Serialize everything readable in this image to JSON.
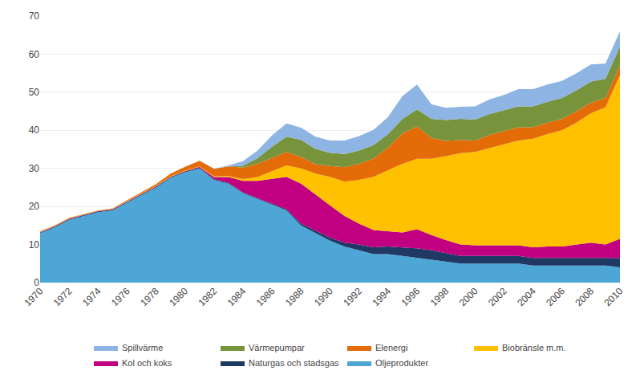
{
  "chart_data": {
    "type": "area",
    "stacked": true,
    "grid": true,
    "legend": "bottom",
    "x": [
      1970,
      1971,
      1972,
      1973,
      1974,
      1975,
      1976,
      1977,
      1978,
      1979,
      1980,
      1981,
      1982,
      1983,
      1984,
      1985,
      1986,
      1987,
      1988,
      1989,
      1990,
      1991,
      1992,
      1993,
      1994,
      1995,
      1996,
      1997,
      1998,
      1999,
      2000,
      2001,
      2002,
      2003,
      2004,
      2005,
      2006,
      2007,
      2008,
      2009,
      2010
    ],
    "xlim": [
      1970,
      2010
    ],
    "xticks": [
      1970,
      1972,
      1974,
      1976,
      1978,
      1980,
      1982,
      1984,
      1986,
      1988,
      1990,
      1992,
      1994,
      1996,
      1998,
      2000,
      2002,
      2004,
      2006,
      2008,
      2010
    ],
    "ylim": [
      0,
      70
    ],
    "yticks": [
      0,
      10,
      20,
      30,
      40,
      50,
      60,
      70
    ],
    "series": [
      {
        "name": "Oljeprodukter",
        "color": "#4da6d6",
        "values": [
          13.0,
          14.5,
          16.5,
          17.5,
          18.5,
          19.0,
          21.0,
          23.0,
          25.0,
          27.5,
          29.0,
          30.0,
          27.0,
          26.0,
          23.5,
          22.0,
          20.5,
          19.0,
          15.0,
          13.0,
          11.0,
          9.5,
          8.5,
          7.5,
          7.5,
          7.0,
          6.5,
          6.0,
          5.5,
          5.0,
          5.0,
          5.0,
          5.0,
          5.0,
          4.5,
          4.5,
          4.5,
          4.5,
          4.5,
          4.5,
          4.0
        ]
      },
      {
        "name": "Naturgas och stadsgas",
        "color": "#1f3864",
        "values": [
          0.2,
          0.2,
          0.2,
          0.2,
          0.2,
          0.2,
          0.2,
          0.2,
          0.2,
          0.2,
          0.2,
          0.2,
          0.2,
          0.2,
          0.2,
          0.2,
          0.2,
          0.3,
          0.5,
          0.6,
          0.8,
          1.0,
          1.5,
          1.8,
          2.0,
          2.2,
          2.5,
          2.5,
          2.2,
          2.0,
          2.0,
          2.0,
          2.0,
          2.0,
          2.0,
          2.0,
          2.0,
          2.0,
          2.0,
          2.0,
          2.5
        ]
      },
      {
        "name": "Kol och koks",
        "color": "#c00080",
        "values": [
          0.1,
          0.1,
          0.1,
          0.1,
          0.1,
          0.1,
          0.1,
          0.1,
          0.1,
          0.1,
          0.1,
          0.2,
          0.5,
          1.5,
          3.0,
          4.5,
          6.5,
          8.5,
          10.5,
          9.5,
          8.5,
          7.0,
          5.5,
          4.5,
          4.0,
          4.0,
          5.0,
          4.0,
          3.5,
          3.0,
          2.8,
          2.8,
          2.8,
          2.8,
          2.8,
          3.0,
          3.0,
          3.5,
          4.0,
          3.5,
          5.0
        ]
      },
      {
        "name": "Biobränsle m.m.",
        "color": "#ffc000",
        "values": [
          0.1,
          0.1,
          0.1,
          0.1,
          0.1,
          0.1,
          0.1,
          0.1,
          0.1,
          0.1,
          0.1,
          0.1,
          0.2,
          0.3,
          0.5,
          1.0,
          2.0,
          3.0,
          4.0,
          5.5,
          7.5,
          9.0,
          11.5,
          14.0,
          16.0,
          18.0,
          18.5,
          20.0,
          22.0,
          24.0,
          24.5,
          25.5,
          26.5,
          27.5,
          28.5,
          29.5,
          30.5,
          32.0,
          34.0,
          36.0,
          43.0
        ]
      },
      {
        "name": "Elenergi",
        "color": "#e36c09",
        "values": [
          0.1,
          0.1,
          0.1,
          0.1,
          0.1,
          0.1,
          0.2,
          0.3,
          0.5,
          0.7,
          1.0,
          1.5,
          2.0,
          2.5,
          3.0,
          3.5,
          3.5,
          3.5,
          3.0,
          2.5,
          2.8,
          3.8,
          4.2,
          4.8,
          6.0,
          8.0,
          8.5,
          5.5,
          4.0,
          3.5,
          3.0,
          3.5,
          3.5,
          3.5,
          3.0,
          3.0,
          3.0,
          3.0,
          2.8,
          2.5,
          2.5
        ]
      },
      {
        "name": "Värmepumpar",
        "color": "#77933c",
        "values": [
          0.0,
          0.0,
          0.0,
          0.0,
          0.0,
          0.0,
          0.0,
          0.0,
          0.0,
          0.0,
          0.0,
          0.0,
          0.0,
          0.0,
          0.5,
          1.5,
          3.0,
          4.0,
          4.5,
          4.0,
          3.5,
          3.5,
          3.5,
          3.5,
          3.5,
          3.8,
          4.5,
          5.0,
          5.5,
          5.5,
          5.5,
          5.5,
          5.5,
          5.5,
          5.5,
          5.5,
          5.5,
          5.5,
          5.5,
          5.0,
          5.0
        ]
      },
      {
        "name": "Spillvärme",
        "color": "#8eb4e3",
        "values": [
          0.0,
          0.0,
          0.0,
          0.0,
          0.0,
          0.0,
          0.0,
          0.0,
          0.0,
          0.0,
          0.0,
          0.0,
          0.0,
          0.3,
          1.2,
          2.0,
          3.0,
          3.5,
          3.2,
          3.2,
          3.2,
          3.5,
          3.8,
          4.0,
          4.5,
          6.0,
          6.5,
          3.8,
          3.2,
          3.2,
          3.5,
          3.8,
          4.0,
          4.5,
          4.5,
          4.5,
          4.5,
          4.5,
          4.5,
          4.0,
          4.0
        ]
      }
    ]
  }
}
